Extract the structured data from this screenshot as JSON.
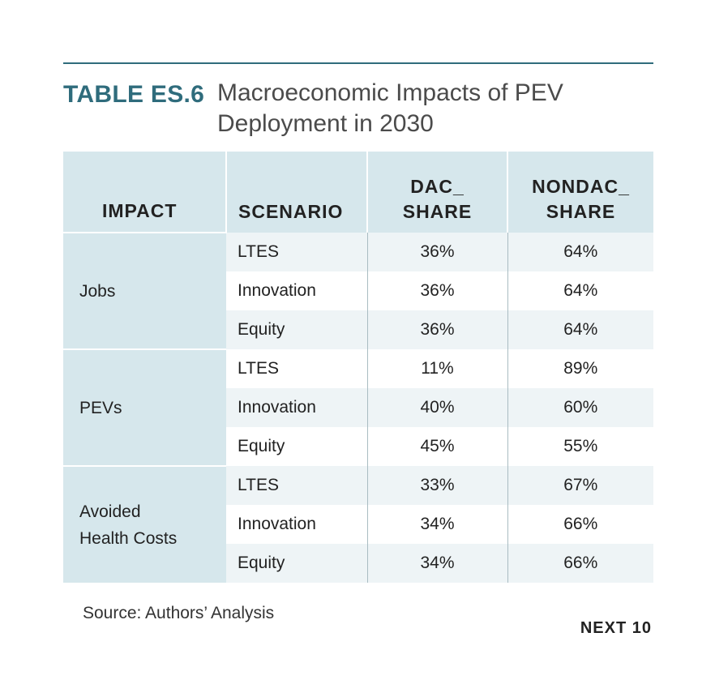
{
  "title": {
    "label": "TABLE ES.6",
    "text_line1": "Macroeconomic Impacts of PEV",
    "text_line2": "Deployment in 2030"
  },
  "table": {
    "headers": {
      "impact": "IMPACT",
      "scenario": "SCENARIO",
      "dac_line1": "DAC_",
      "dac_line2": "SHARE",
      "nondac_line1": "NONDAC_",
      "nondac_line2": "SHARE"
    },
    "groups": [
      {
        "impact_line1": "Jobs",
        "impact_line2": "",
        "rows": [
          {
            "scenario": "LTES",
            "dac": "36%",
            "nondac": "64%"
          },
          {
            "scenario": "Innovation",
            "dac": "36%",
            "nondac": "64%"
          },
          {
            "scenario": "Equity",
            "dac": "36%",
            "nondac": "64%"
          }
        ]
      },
      {
        "impact_line1": "PEVs",
        "impact_line2": "",
        "rows": [
          {
            "scenario": "LTES",
            "dac": "11%",
            "nondac": "89%"
          },
          {
            "scenario": "Innovation",
            "dac": "40%",
            "nondac": "60%"
          },
          {
            "scenario": "Equity",
            "dac": "45%",
            "nondac": "55%"
          }
        ]
      },
      {
        "impact_line1": "Avoided",
        "impact_line2": "Health Costs",
        "rows": [
          {
            "scenario": "LTES",
            "dac": "33%",
            "nondac": "67%"
          },
          {
            "scenario": "Innovation",
            "dac": "34%",
            "nondac": "66%"
          },
          {
            "scenario": "Equity",
            "dac": "34%",
            "nondac": "66%"
          }
        ]
      }
    ]
  },
  "source": "Source: Authors’ Analysis",
  "brand": "NEXT 10",
  "colors": {
    "accent": "#2f6c7c",
    "header_bg": "#d6e7ec",
    "alt_row_bg": "#eef4f6"
  }
}
